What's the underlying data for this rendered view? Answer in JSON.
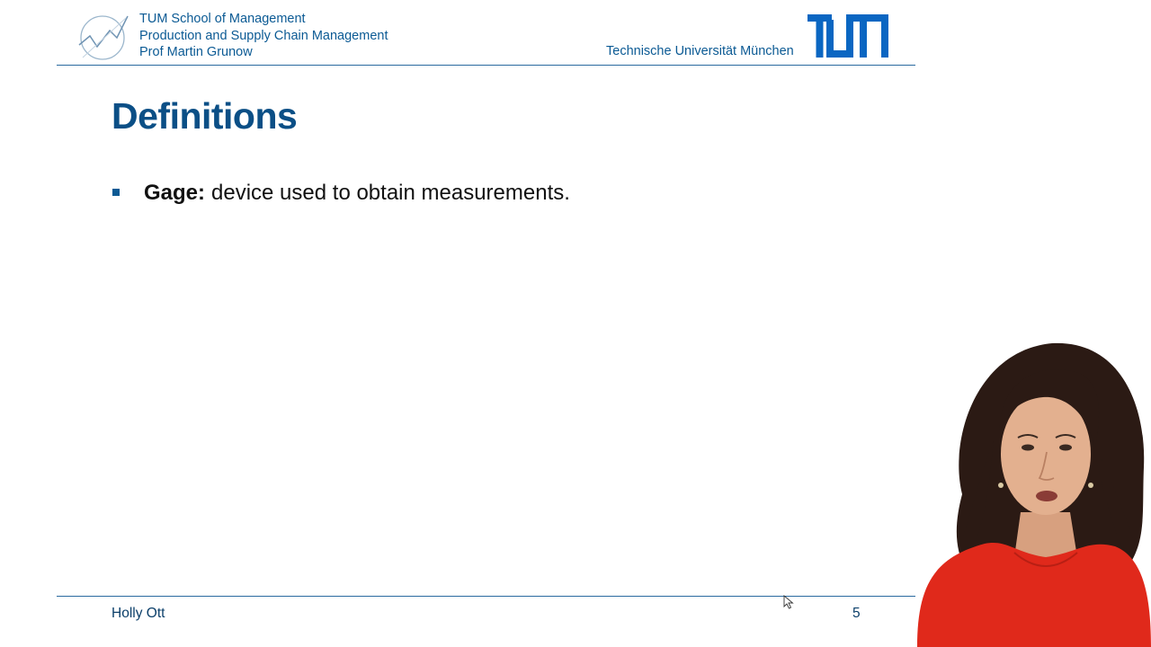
{
  "header": {
    "school": "TUM School of Management",
    "chair": "Production and Supply Chain Management",
    "professor": "Prof Martin Grunow",
    "university": "Technische Universität München",
    "logo_icon": "tum-som-logo-icon",
    "brand_logo": "tum-logo-icon"
  },
  "slide": {
    "title": "Definitions",
    "bullets": [
      {
        "term": "Gage:",
        "definition": "device used to obtain measurements."
      }
    ]
  },
  "footer": {
    "author": "Holly Ott",
    "page_number": "5"
  },
  "colors": {
    "accent": "#0b5a94",
    "title": "#0b4f86",
    "text": "#111111",
    "presenter_shirt": "#e0291b"
  }
}
